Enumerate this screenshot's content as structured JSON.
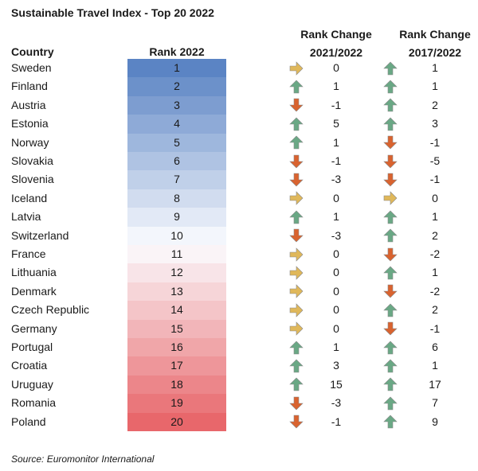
{
  "title": "Sustainable Travel Index - Top 20 2022",
  "headers": {
    "country": "Country",
    "rank": "Rank 2022",
    "change21_line1": "Rank Change",
    "change21_line2": "2021/2022",
    "change17_line1": "Rank Change",
    "change17_line2": "2017/2022"
  },
  "source": "Source: Euromonitor International",
  "colors": {
    "rank_top": "#5b84c4",
    "rank_mid": "#fbfcff",
    "rank_bottom": "#e8676b",
    "arrow_up": "#6aa885",
    "arrow_down": "#d9632f",
    "arrow_flat": "#e0b85a"
  },
  "chart_data": {
    "type": "table",
    "columns": [
      "Country",
      "Rank 2022",
      "Rank Change 2021/2022",
      "Rank Change 2017/2022"
    ],
    "rows": [
      {
        "country": "Sweden",
        "rank": "1",
        "change21": "0",
        "change17": "1"
      },
      {
        "country": "Finland",
        "rank": "2",
        "change21": "1",
        "change17": "1"
      },
      {
        "country": "Austria",
        "rank": "3",
        "change21": "-1",
        "change17": "2"
      },
      {
        "country": "Estonia",
        "rank": "4",
        "change21": "5",
        "change17": "3"
      },
      {
        "country": "Norway",
        "rank": "5",
        "change21": "1",
        "change17": "-1"
      },
      {
        "country": "Slovakia",
        "rank": "6",
        "change21": "-1",
        "change17": "-5"
      },
      {
        "country": "Slovenia",
        "rank": "7",
        "change21": "-3",
        "change17": "-1"
      },
      {
        "country": "Iceland",
        "rank": "8",
        "change21": "0",
        "change17": "0"
      },
      {
        "country": "Latvia",
        "rank": "9",
        "change21": "1",
        "change17": "1"
      },
      {
        "country": "Switzerland",
        "rank": "10",
        "change21": "-3",
        "change17": "2"
      },
      {
        "country": "France",
        "rank": "11",
        "change21": "0",
        "change17": "-2"
      },
      {
        "country": "Lithuania",
        "rank": "12",
        "change21": "0",
        "change17": "1"
      },
      {
        "country": "Denmark",
        "rank": "13",
        "change21": "0",
        "change17": "-2"
      },
      {
        "country": "Czech Republic",
        "rank": "14",
        "change21": "0",
        "change17": "2"
      },
      {
        "country": "Germany",
        "rank": "15",
        "change21": "0",
        "change17": "-1"
      },
      {
        "country": "Portugal",
        "rank": "16",
        "change21": "1",
        "change17": "6"
      },
      {
        "country": "Croatia",
        "rank": "17",
        "change21": "3",
        "change17": "1"
      },
      {
        "country": "Uruguay",
        "rank": "18",
        "change21": "15",
        "change17": "17"
      },
      {
        "country": "Romania",
        "rank": "19",
        "change21": "-3",
        "change17": "7"
      },
      {
        "country": "Poland",
        "rank": "20",
        "change21": "-1",
        "change17": "9"
      }
    ]
  }
}
